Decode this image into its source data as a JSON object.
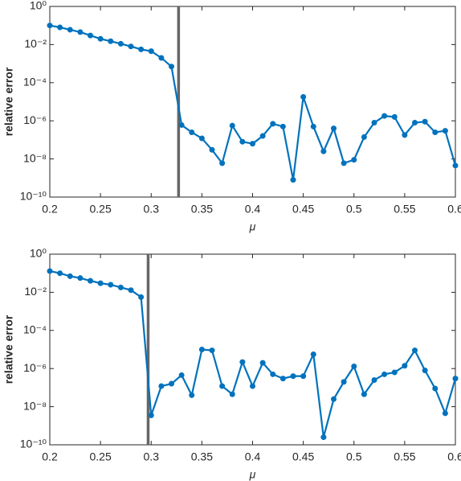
{
  "chart_data": [
    {
      "type": "line",
      "ylabel": "relative error",
      "xlabel": "μ",
      "log_y": true,
      "vline": 0.327,
      "vline_color": "#666666",
      "x": [
        0.2,
        0.21,
        0.22,
        0.23,
        0.24,
        0.25,
        0.26,
        0.27,
        0.28,
        0.29,
        0.3,
        0.31,
        0.32,
        0.33,
        0.34,
        0.35,
        0.36,
        0.37,
        0.38,
        0.39,
        0.4,
        0.41,
        0.42,
        0.43,
        0.44,
        0.45,
        0.46,
        0.47,
        0.48,
        0.49,
        0.5,
        0.51,
        0.52,
        0.53,
        0.54,
        0.55,
        0.56,
        0.57,
        0.58,
        0.59,
        0.6
      ],
      "series": [
        {
          "color": "#0072bd",
          "values": [
            0.1,
            0.08,
            0.06,
            0.045,
            0.03,
            0.02,
            0.015,
            0.011,
            0.008,
            0.0056,
            0.0045,
            0.002,
            0.0007,
            6e-07,
            2.5e-07,
            1.2e-07,
            3e-08,
            6e-09,
            5.6e-07,
            8e-08,
            6.3e-08,
            1.6e-07,
            7e-07,
            5e-07,
            8e-10,
            1.8e-05,
            5e-07,
            2.5e-08,
            4e-07,
            6e-09,
            9e-09,
            1.4e-07,
            8e-07,
            1.8e-06,
            1.6e-06,
            1.8e-07,
            8e-07,
            9e-07,
            2.5e-07,
            3e-07,
            4.5e-09
          ]
        }
      ],
      "xlim": [
        0.2,
        0.6
      ],
      "xticks": [
        0.2,
        0.25,
        0.3,
        0.35,
        0.4,
        0.45,
        0.5,
        0.55,
        0.6
      ],
      "ylim": [
        1e-10,
        1
      ],
      "yticks": [
        {
          "value": 1e-10,
          "label": "10⁻¹⁰"
        },
        {
          "value": 1e-08,
          "label": "10⁻⁸"
        },
        {
          "value": 1e-06,
          "label": "10⁻⁶"
        },
        {
          "value": 0.0001,
          "label": "10⁻⁴"
        },
        {
          "value": 0.01,
          "label": "10⁻²"
        },
        {
          "value": 1,
          "label": "10⁰"
        }
      ]
    },
    {
      "type": "line",
      "ylabel": "relative error",
      "xlabel": "μ",
      "log_y": true,
      "vline": 0.297,
      "vline_color": "#666666",
      "x": [
        0.2,
        0.21,
        0.22,
        0.23,
        0.24,
        0.25,
        0.26,
        0.27,
        0.28,
        0.29,
        0.3,
        0.31,
        0.32,
        0.33,
        0.34,
        0.35,
        0.36,
        0.37,
        0.38,
        0.39,
        0.4,
        0.41,
        0.42,
        0.43,
        0.44,
        0.45,
        0.46,
        0.47,
        0.48,
        0.49,
        0.5,
        0.51,
        0.52,
        0.53,
        0.54,
        0.55,
        0.56,
        0.57,
        0.58,
        0.59,
        0.6
      ],
      "series": [
        {
          "color": "#0072bd",
          "values": [
            0.13,
            0.1,
            0.07,
            0.056,
            0.04,
            0.03,
            0.025,
            0.018,
            0.013,
            0.0056,
            3.5e-09,
            1.2e-07,
            1.6e-07,
            4.5e-07,
            4e-08,
            1e-05,
            9e-06,
            1.2e-07,
            4.5e-08,
            2.2e-06,
            1.2e-07,
            2e-06,
            5e-07,
            3e-07,
            4e-07,
            4e-07,
            5.6e-06,
            2.5e-10,
            2.5e-08,
            2e-07,
            1.3e-06,
            4.5e-08,
            2.5e-07,
            5e-07,
            6.3e-07,
            1.4e-06,
            9e-06,
            8e-07,
            9e-08,
            4.5e-09,
            3e-07
          ]
        }
      ],
      "xlim": [
        0.2,
        0.6
      ],
      "xticks": [
        0.2,
        0.25,
        0.3,
        0.35,
        0.4,
        0.45,
        0.5,
        0.55,
        0.6
      ],
      "ylim": [
        1e-10,
        1
      ],
      "yticks": [
        {
          "value": 1e-10,
          "label": "10⁻¹⁰"
        },
        {
          "value": 1e-08,
          "label": "10⁻⁸"
        },
        {
          "value": 1e-06,
          "label": "10⁻⁶"
        },
        {
          "value": 0.0001,
          "label": "10⁻⁴"
        },
        {
          "value": 0.01,
          "label": "10⁻²"
        },
        {
          "value": 1,
          "label": "10⁰"
        }
      ]
    }
  ]
}
